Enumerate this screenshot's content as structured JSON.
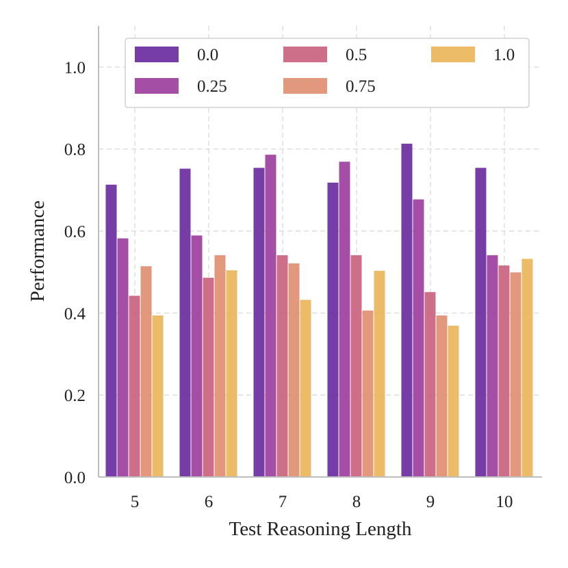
{
  "chart_data": {
    "type": "bar",
    "title": "",
    "xlabel": "Test Reasoning Length",
    "ylabel": "Performance",
    "ylim": [
      0,
      1.1
    ],
    "yticks": [
      0.0,
      0.2,
      0.4,
      0.6,
      0.8,
      1.0
    ],
    "ytick_labels": [
      "0.0",
      "0.2",
      "0.4",
      "0.6",
      "0.8",
      "1.0"
    ],
    "categories": [
      "5",
      "6",
      "7",
      "8",
      "9",
      "10"
    ],
    "grid": true,
    "legend_position": "top",
    "series": [
      {
        "name": "0.0",
        "color": "#6a2c9f",
        "values": [
          0.713,
          0.752,
          0.754,
          0.718,
          0.813,
          0.754
        ]
      },
      {
        "name": "0.25",
        "color": "#9c3f9e",
        "values": [
          0.582,
          0.589,
          0.786,
          0.769,
          0.677,
          0.541
        ]
      },
      {
        "name": "0.5",
        "color": "#c9637f",
        "values": [
          0.442,
          0.486,
          0.541,
          0.541,
          0.451,
          0.516
        ]
      },
      {
        "name": "0.75",
        "color": "#e08f71",
        "values": [
          0.514,
          0.541,
          0.521,
          0.406,
          0.394,
          0.499
        ]
      },
      {
        "name": "1.0",
        "color": "#e9b55a",
        "values": [
          0.394,
          0.504,
          0.432,
          0.503,
          0.369,
          0.532
        ]
      }
    ]
  }
}
